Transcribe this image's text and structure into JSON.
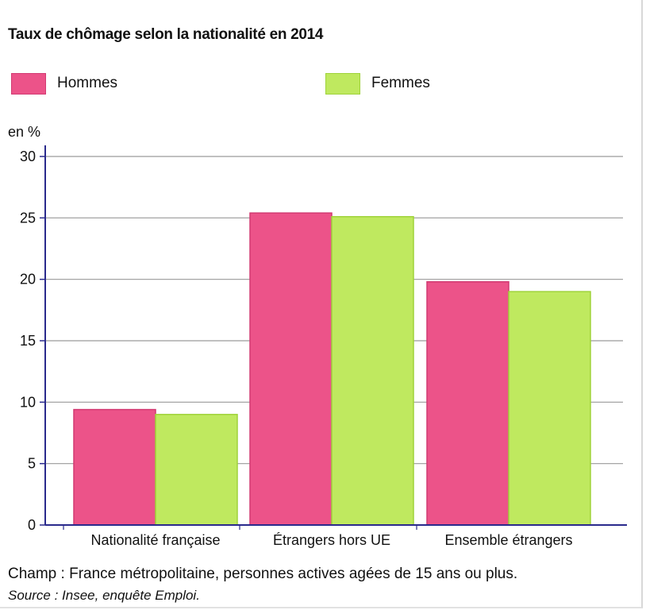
{
  "chart_data": {
    "type": "bar",
    "title": "Taux de chômage selon la nationalité en 2014",
    "ylabel": "en %",
    "xlabel": "",
    "ylim": [
      0,
      30
    ],
    "yticks": [
      0,
      5,
      10,
      15,
      20,
      25,
      30
    ],
    "grid": true,
    "legend_position": "top",
    "categories": [
      "Nationalité française",
      "Étrangers hors UE",
      "Ensemble étrangers"
    ],
    "series": [
      {
        "name": "Hommes",
        "values": [
          9.4,
          25.4,
          19.8
        ],
        "color": "#ec5389",
        "stroke": "#d23a72"
      },
      {
        "name": "Femmes",
        "values": [
          9.0,
          25.1,
          19.0
        ],
        "color": "#bfe95f",
        "stroke": "#9fd33a"
      }
    ],
    "colors": {
      "axis": "#2a2a8c",
      "grid": "#9a9a9a"
    }
  },
  "footer": {
    "note": "Champ : France métropolitaine, personnes actives agées de 15 ans ou plus.",
    "source": "Source : Insee, enquête Emploi."
  }
}
